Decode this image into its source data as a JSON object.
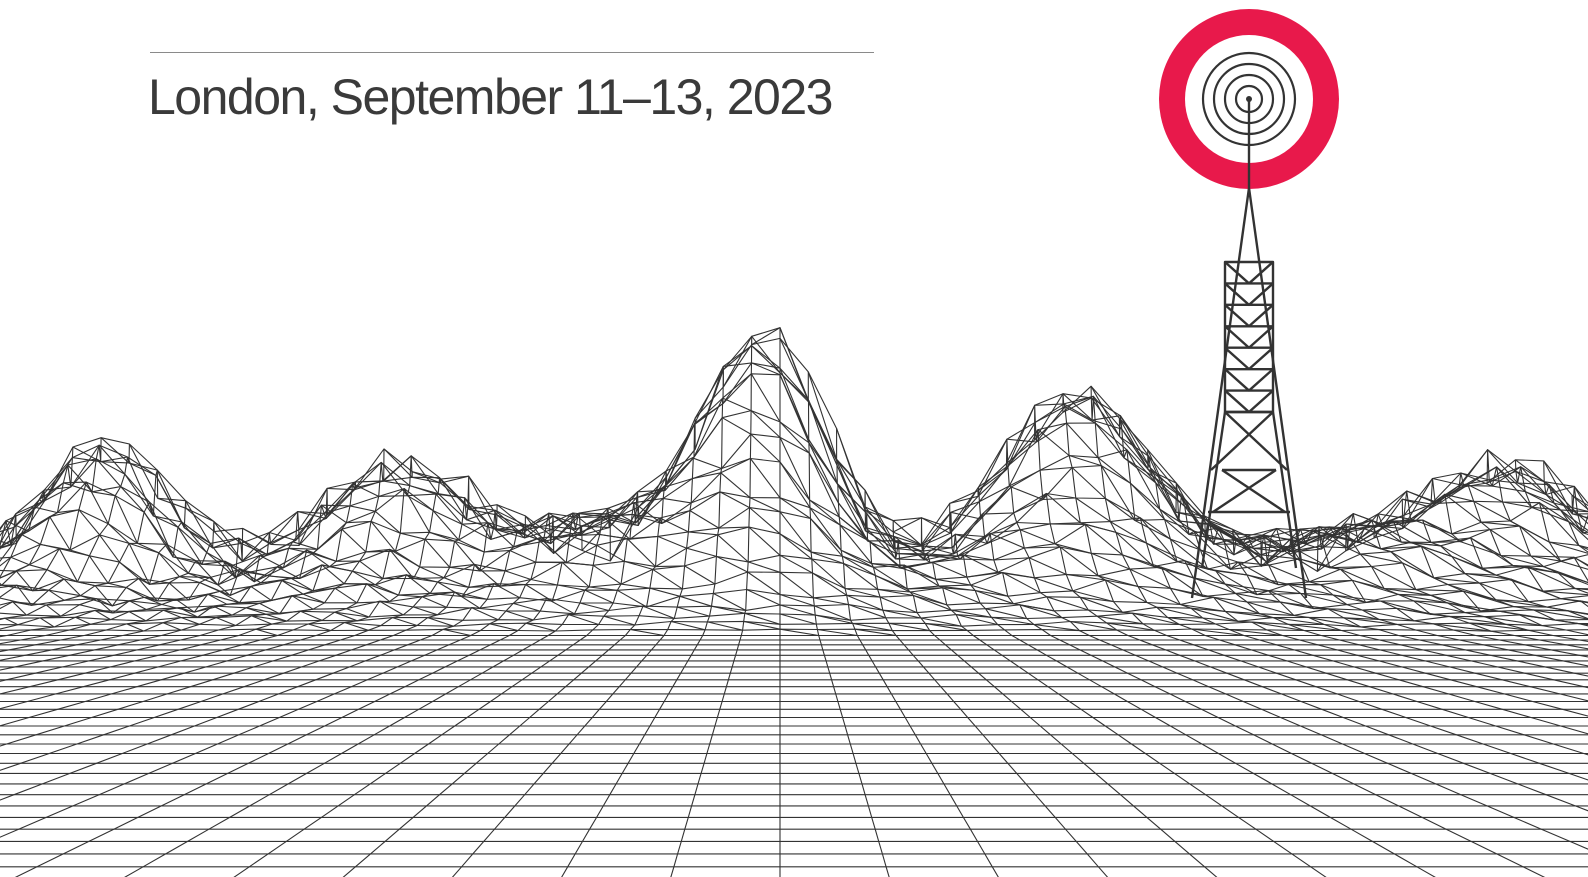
{
  "event": {
    "date_line": "London, September 11–13, 2023"
  },
  "colors": {
    "accent": "#e8194b",
    "ink": "#333333",
    "text": "#3a3a3a",
    "rule": "#8a8a8a",
    "background": "#ffffff"
  },
  "icons": {
    "logo": "broadcast-tower-logo-icon",
    "landscape": "wireframe-mountain-terrain"
  }
}
